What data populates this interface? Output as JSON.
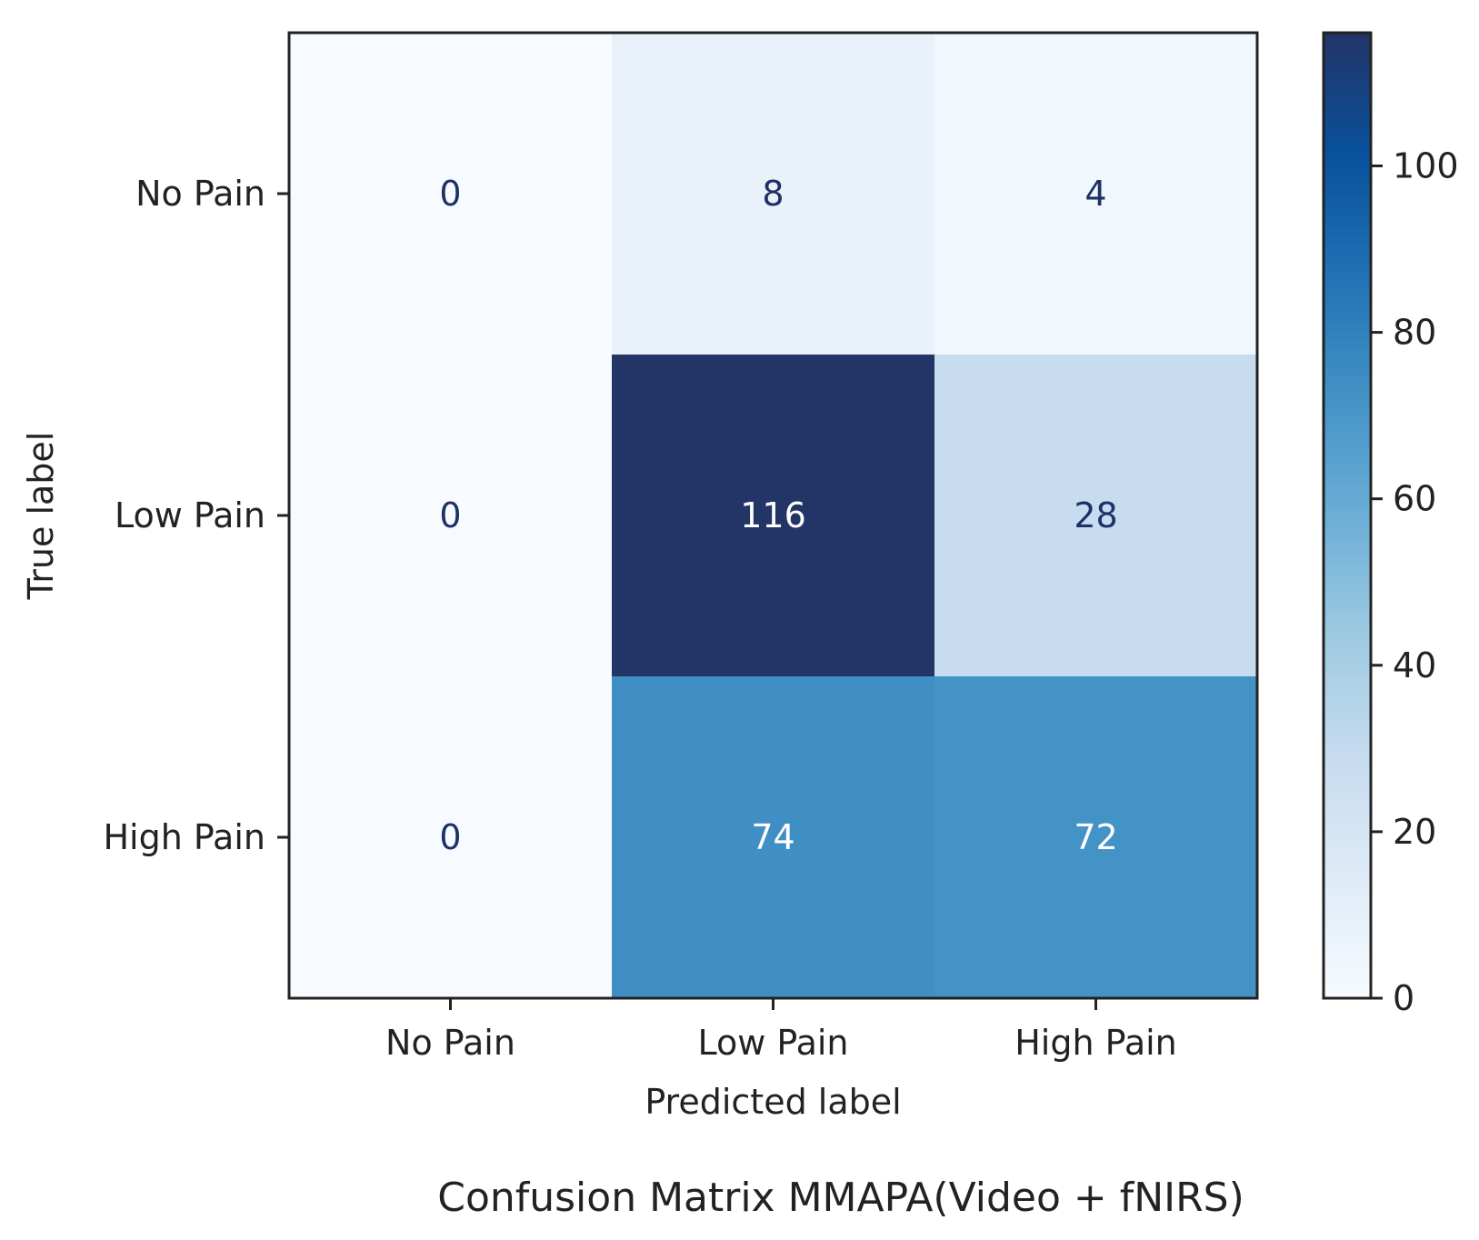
{
  "chart_data": {
    "type": "heatmap",
    "caption": "Confusion Matrix MMAPA(Video + fNIRS)",
    "xlabel": "Predicted label",
    "ylabel": "True label",
    "row_labels": [
      "No Pain",
      "Low Pain",
      "High Pain"
    ],
    "col_labels": [
      "No Pain",
      "Low Pain",
      "High Pain"
    ],
    "matrix": [
      [
        0,
        8,
        4
      ],
      [
        0,
        116,
        28
      ],
      [
        0,
        74,
        72
      ]
    ],
    "colormap": "Blues",
    "colorbar": {
      "range": [
        0,
        116
      ],
      "ticks": [
        0,
        20,
        40,
        60,
        80,
        100
      ],
      "tick_labels": [
        "0",
        "20",
        "40",
        "60",
        "80",
        "100"
      ]
    },
    "text_color_dark": "#1c3166",
    "text_color_light": "#ffffff",
    "grid": false
  }
}
